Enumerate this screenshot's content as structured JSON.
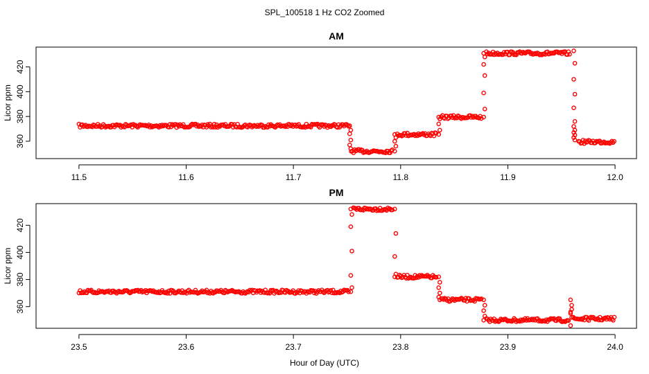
{
  "figure_title": "SPL_100518  1 Hz CO2 Zoomed",
  "x_axis_label": "Hour of Day (UTC)",
  "colors": {
    "points": "#ff0000",
    "axes": "#000000",
    "background": "#ffffff"
  },
  "chart_data": [
    {
      "type": "scatter",
      "title": "AM",
      "ylabel": "Licor ppm",
      "xlim": [
        11.46,
        12.02
      ],
      "ylim": [
        346,
        436
      ],
      "xticks": [
        "11.5",
        "11.6",
        "11.7",
        "11.8",
        "11.9",
        "12.0"
      ],
      "yticks": [
        "360",
        "380",
        "400",
        "420"
      ],
      "grid": false,
      "segments": [
        {
          "x": [
            11.5,
            11.752
          ],
          "y": 372.5
        },
        {
          "x": [
            11.754,
            11.793
          ],
          "y": 352
        },
        {
          "x": [
            11.797,
            11.834
          ],
          "y": 365.5
        },
        {
          "x": [
            11.838,
            11.876
          ],
          "y": 379.5
        },
        {
          "x": [
            11.88,
            11.958
          ],
          "y": 431
        },
        {
          "x": [
            11.966,
            12.0
          ],
          "y": 359.5
        }
      ],
      "transitions": [
        {
          "x": 11.753,
          "y": [
            372.5,
            369,
            366,
            361,
            357,
            354
          ]
        },
        {
          "x": 11.795,
          "y": [
            352,
            356,
            360,
            363,
            365.5
          ]
        },
        {
          "x": 11.836,
          "y": [
            365.5,
            369,
            374,
            378,
            379.5
          ]
        },
        {
          "x": 11.878,
          "y": [
            379.5,
            386,
            399,
            413,
            422,
            428,
            431
          ]
        },
        {
          "x": 11.962,
          "y": [
            433,
            423,
            410,
            398,
            387,
            376,
            372,
            369,
            367,
            365,
            363,
            361
          ]
        }
      ]
    },
    {
      "type": "scatter",
      "title": "PM",
      "ylabel": "Licor ppm",
      "xlim": [
        23.46,
        24.02
      ],
      "ylim": [
        344,
        436
      ],
      "xticks": [
        "23.5",
        "23.6",
        "23.7",
        "23.8",
        "23.9",
        "24.0"
      ],
      "yticks": [
        "360",
        "380",
        "400",
        "420"
      ],
      "grid": false,
      "segments": [
        {
          "x": [
            23.5,
            23.752
          ],
          "y": 371
        },
        {
          "x": [
            23.756,
            23.793
          ],
          "y": 432
        },
        {
          "x": [
            23.797,
            23.834
          ],
          "y": 382
        },
        {
          "x": [
            23.838,
            23.876
          ],
          "y": 365
        },
        {
          "x": [
            23.88,
            23.957
          ],
          "y": 350
        },
        {
          "x": [
            23.961,
            24.0
          ],
          "y": 351
        }
      ],
      "transitions": [
        {
          "x": 23.754,
          "y": [
            371,
            374,
            383,
            401,
            419,
            428,
            432
          ]
        },
        {
          "x": 23.795,
          "y": [
            432,
            414,
            397,
            384,
            382
          ]
        },
        {
          "x": 23.836,
          "y": [
            382,
            378,
            374,
            370,
            367,
            365
          ]
        },
        {
          "x": 23.878,
          "y": [
            365,
            361,
            357,
            353,
            350
          ]
        },
        {
          "x": 23.959,
          "y": [
            346,
            352,
            356,
            361,
            365,
            358,
            355
          ]
        }
      ]
    }
  ]
}
